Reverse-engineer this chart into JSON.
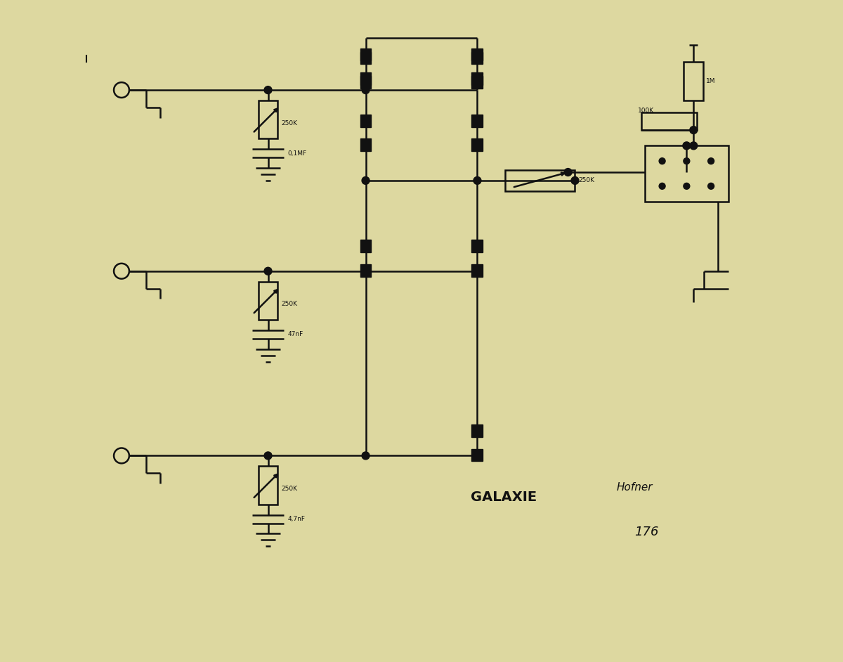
{
  "bg_color": "#ddd8a0",
  "line_color": "#111111",
  "lw": 1.8,
  "title": "GALAXIE",
  "handwritten1": "Hofner",
  "handwritten2": "176",
  "fig_width": 12.0,
  "fig_height": 9.42,
  "dpi": 100
}
